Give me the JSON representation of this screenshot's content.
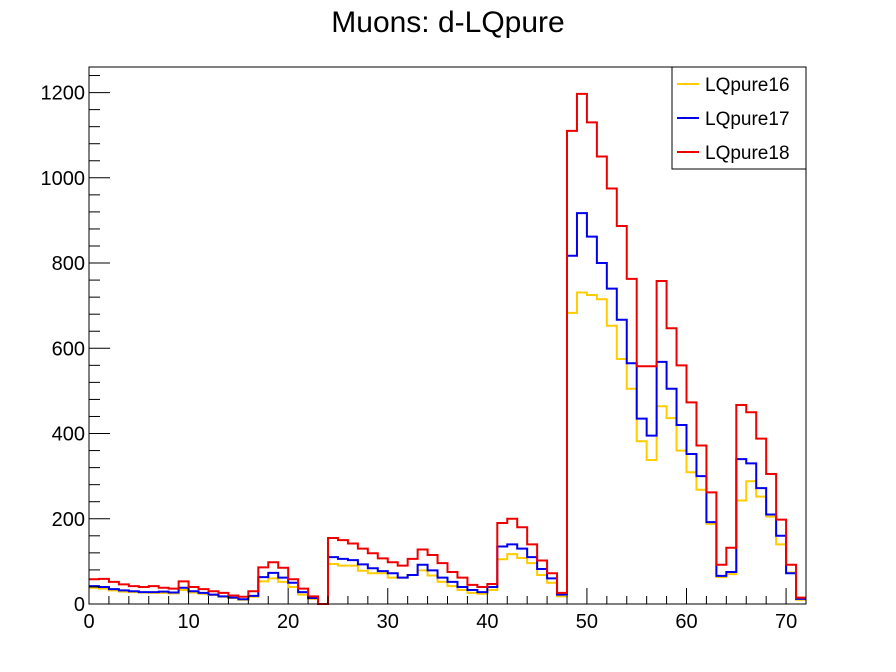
{
  "chart_data": {
    "type": "histogram",
    "title": "Muons: d-LQpure",
    "xlabel": "",
    "ylabel": "",
    "xlim": [
      0,
      72
    ],
    "ylim": [
      0,
      1260
    ],
    "bin_width": 1,
    "x_ticks": [
      0,
      10,
      20,
      30,
      40,
      50,
      60,
      70
    ],
    "y_ticks": [
      0,
      200,
      400,
      600,
      800,
      1000,
      1200
    ],
    "legend_position": "top-right",
    "grid": false,
    "series": [
      {
        "name": "LQpure16",
        "color": "#ffcc00",
        "values": [
          38,
          36,
          32,
          29,
          28,
          27,
          26,
          26,
          25,
          33,
          27,
          24,
          21,
          17,
          14,
          10,
          17,
          53,
          60,
          52,
          40,
          22,
          12,
          0,
          94,
          90,
          90,
          78,
          72,
          72,
          62,
          62,
          68,
          79,
          67,
          52,
          42,
          33,
          26,
          24,
          33,
          105,
          117,
          108,
          96,
          68,
          50,
          18,
          683,
          731,
          725,
          715,
          653,
          575,
          505,
          382,
          338,
          464,
          436,
          360,
          309,
          268,
          188,
          63,
          70,
          243,
          288,
          252,
          205,
          140,
          74,
          10
        ]
      },
      {
        "name": "LQpure17",
        "color": "#0000ee",
        "values": [
          42,
          40,
          35,
          32,
          30,
          28,
          28,
          29,
          27,
          38,
          30,
          26,
          22,
          18,
          15,
          11,
          19,
          63,
          73,
          62,
          50,
          28,
          14,
          0,
          110,
          106,
          103,
          93,
          84,
          77,
          72,
          62,
          68,
          92,
          79,
          62,
          52,
          40,
          33,
          28,
          40,
          135,
          140,
          130,
          110,
          82,
          60,
          22,
          817,
          917,
          862,
          800,
          740,
          667,
          565,
          435,
          395,
          568,
          505,
          420,
          352,
          300,
          192,
          66,
          75,
          340,
          330,
          272,
          210,
          160,
          72,
          12
        ]
      },
      {
        "name": "LQpure18",
        "color": "#ee0000",
        "values": [
          58,
          59,
          52,
          46,
          42,
          40,
          42,
          38,
          36,
          53,
          40,
          35,
          30,
          26,
          20,
          17,
          30,
          86,
          98,
          85,
          58,
          36,
          18,
          0,
          155,
          150,
          142,
          130,
          119,
          107,
          98,
          90,
          106,
          128,
          115,
          96,
          75,
          62,
          45,
          40,
          47,
          190,
          200,
          180,
          140,
          102,
          72,
          26,
          1110,
          1197,
          1130,
          1050,
          975,
          887,
          763,
          558,
          558,
          758,
          647,
          560,
          473,
          372,
          262,
          92,
          132,
          467,
          450,
          388,
          305,
          198,
          92,
          15
        ]
      }
    ]
  }
}
